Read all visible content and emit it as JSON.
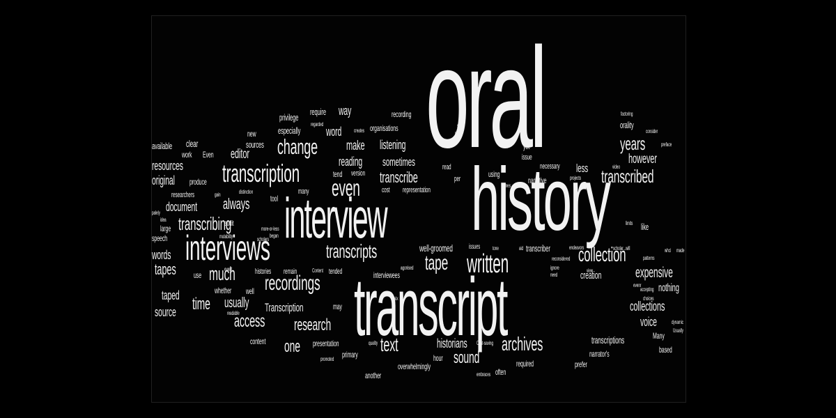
{
  "words": [
    "oral",
    "history",
    "transcript",
    "interview",
    "interviews",
    "transcription",
    "written",
    "change",
    "even",
    "recordings",
    "transcripts",
    "collection",
    "transcribed",
    "years",
    "tape",
    "transcribing",
    "much",
    "access",
    "archives",
    "text",
    "research",
    "time",
    "one",
    "sound",
    "usually",
    "tapes",
    "expensive",
    "however",
    "collections",
    "always",
    "editor",
    "make",
    "document",
    "original",
    "resources",
    "transcribe",
    "listening",
    "reading",
    "sometimes",
    "word",
    "Transcription",
    "words",
    "taped",
    "source",
    "voice",
    "historians",
    "less",
    "nothing",
    "way",
    "well-groomed",
    "transcriptions",
    "creation",
    "transcriber",
    "sources",
    "especially",
    "work",
    "clear",
    "available",
    "Even",
    "produce",
    "privilege",
    "require",
    "orality",
    "like",
    "new",
    "yet",
    "issue",
    "necessary",
    "narrative",
    "using",
    "interviewees",
    "recording",
    "organisations",
    "tend",
    "version",
    "read",
    "per",
    "cost",
    "representation",
    "researchers",
    "many",
    "tool",
    "audit",
    "large",
    "speech",
    "use",
    "histories",
    "remain",
    "tended",
    "whether",
    "well",
    "may",
    "content",
    "presentation",
    "primary",
    "hour",
    "required",
    "prefer",
    "narrator's",
    "another",
    "overwhelmingly",
    "often",
    "based",
    "Many",
    "issues",
    "agonised",
    "ignore",
    "need",
    "view",
    "accepting",
    "choices",
    "factoring",
    "consider",
    "preface",
    "video",
    "times",
    "projects",
    "living",
    "stops",
    "creates",
    "regarded",
    "gain",
    "distinction",
    "idea",
    "more-or-less",
    "began",
    "scholars",
    "mutability",
    "event",
    "Content",
    "readable",
    "quality",
    "six",
    "promoted",
    "Cost-saving",
    "embraces",
    "aid",
    "tone",
    "reconsidered",
    "endeavors",
    "scholar...will",
    "made",
    "patterns",
    "dynamic",
    "Usually",
    "whci",
    "limits",
    "evenr",
    "palely"
  ]
}
